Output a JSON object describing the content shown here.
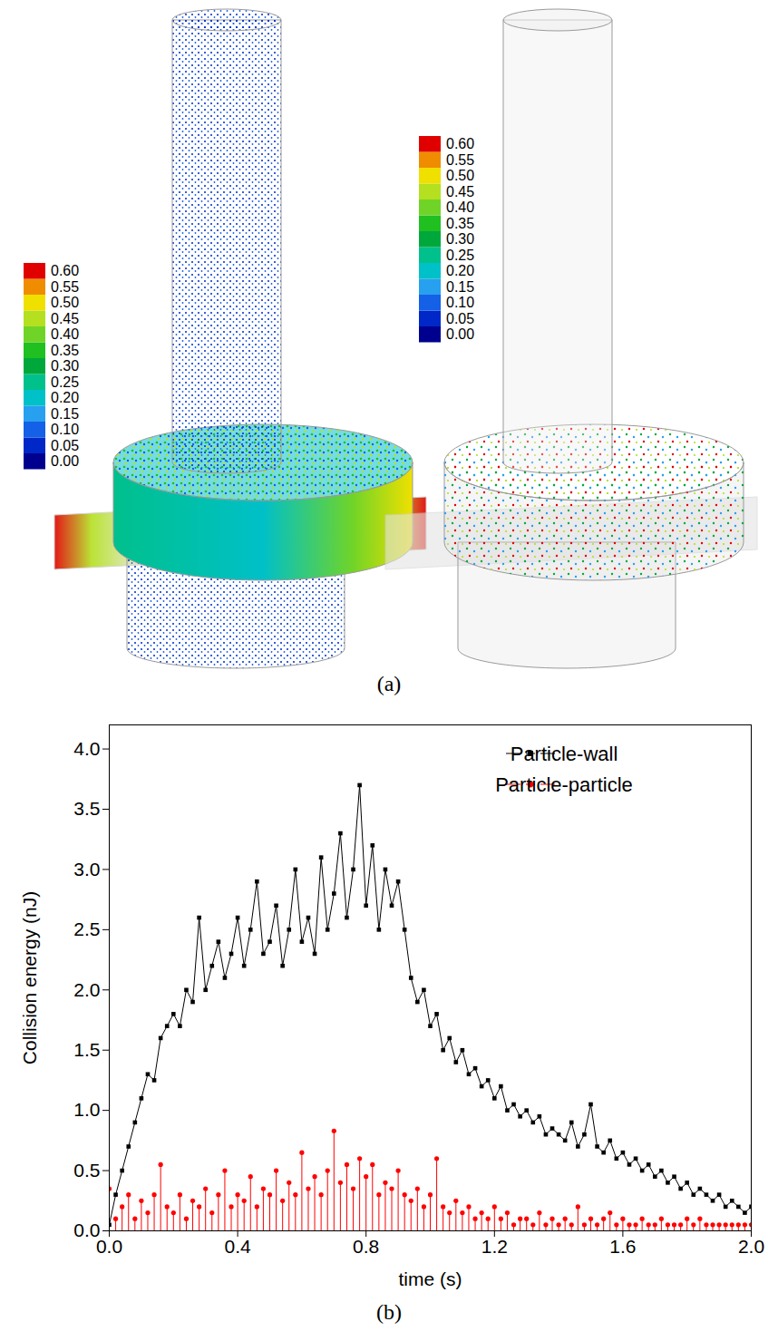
{
  "figure_a": {
    "caption": "(a)",
    "colorbars": [
      {
        "ticks": [
          {
            "value": 0,
            "label": "0.00"
          },
          {
            "value": 0.05,
            "label": "0.05"
          },
          {
            "value": 0.1,
            "label": "0.10"
          },
          {
            "value": 0.15,
            "label": "0.15"
          },
          {
            "value": 0.2,
            "label": "0.20"
          },
          {
            "value": 0.25,
            "label": "0.25"
          },
          {
            "value": 0.3,
            "label": "0.30"
          },
          {
            "value": 0.35,
            "label": "0.35"
          },
          {
            "value": 0.4,
            "label": "0.40"
          },
          {
            "value": 0.45,
            "label": "0.45"
          },
          {
            "value": 0.5,
            "label": "0.50"
          },
          {
            "value": 0.55,
            "label": "0.55"
          },
          {
            "value": 0.6,
            "label": "0.60"
          }
        ],
        "colors": [
          "#00008f",
          "#0028c8",
          "#1460e6",
          "#28a0f0",
          "#00c0c8",
          "#00c08c",
          "#00a83c",
          "#20c020",
          "#70d428",
          "#b4e020",
          "#f0e000",
          "#f08c00",
          "#e00000"
        ]
      },
      {
        "ticks": [
          {
            "value": 0,
            "label": "0.00"
          },
          {
            "value": 0.05,
            "label": "0.05"
          },
          {
            "value": 0.1,
            "label": "0.10"
          },
          {
            "value": 0.15,
            "label": "0.15"
          },
          {
            "value": 0.2,
            "label": "0.20"
          },
          {
            "value": 0.25,
            "label": "0.25"
          },
          {
            "value": 0.3,
            "label": "0.30"
          },
          {
            "value": 0.35,
            "label": "0.35"
          },
          {
            "value": 0.4,
            "label": "0.40"
          },
          {
            "value": 0.45,
            "label": "0.45"
          },
          {
            "value": 0.5,
            "label": "0.50"
          },
          {
            "value": 0.55,
            "label": "0.55"
          },
          {
            "value": 0.6,
            "label": "0.60"
          }
        ],
        "colors": [
          "#00008f",
          "#0028c8",
          "#1460e6",
          "#28a0f0",
          "#00c0c8",
          "#00c08c",
          "#00a83c",
          "#20c020",
          "#70d428",
          "#b4e020",
          "#f0e000",
          "#f08c00",
          "#e00000"
        ]
      }
    ]
  },
  "chart_data": {
    "type": "line",
    "caption": "(b)",
    "x_label": "time (s)",
    "y_label": "Collision energy (nJ)",
    "x": [
      0,
      0.02,
      0.04,
      0.06,
      0.08,
      0.1,
      0.12,
      0.14,
      0.16,
      0.18,
      0.2,
      0.22,
      0.24,
      0.26,
      0.28,
      0.3,
      0.32,
      0.34,
      0.36,
      0.38,
      0.4,
      0.42,
      0.44,
      0.46,
      0.48,
      0.5,
      0.52,
      0.54,
      0.56,
      0.58,
      0.6,
      0.62,
      0.64,
      0.66,
      0.68,
      0.7,
      0.72,
      0.74,
      0.76,
      0.78,
      0.8,
      0.82,
      0.84,
      0.86,
      0.88,
      0.9,
      0.92,
      0.94,
      0.96,
      0.98,
      1,
      1.02,
      1.04,
      1.06,
      1.08,
      1.1,
      1.12,
      1.14,
      1.16,
      1.18,
      1.2,
      1.22,
      1.24,
      1.26,
      1.28,
      1.3,
      1.32,
      1.34,
      1.36,
      1.38,
      1.4,
      1.42,
      1.44,
      1.46,
      1.48,
      1.5,
      1.52,
      1.54,
      1.56,
      1.58,
      1.6,
      1.62,
      1.64,
      1.66,
      1.68,
      1.7,
      1.72,
      1.74,
      1.76,
      1.78,
      1.8,
      1.82,
      1.84,
      1.86,
      1.88,
      1.9,
      1.92,
      1.94,
      1.96,
      1.98,
      2
    ],
    "series": [
      {
        "name": "Particle-wall",
        "color": "#000000",
        "type": "line",
        "marker": "square",
        "line_style": "solid",
        "values": [
          0.05,
          0.3,
          0.5,
          0.7,
          0.9,
          1.1,
          1.3,
          1.25,
          1.6,
          1.7,
          1.8,
          1.7,
          2.0,
          1.9,
          2.6,
          2.0,
          2.2,
          2.4,
          2.1,
          2.3,
          2.6,
          2.2,
          2.5,
          2.9,
          2.3,
          2.4,
          2.7,
          2.2,
          2.5,
          3.0,
          2.4,
          2.6,
          2.3,
          3.1,
          2.5,
          2.8,
          3.3,
          2.6,
          3.0,
          3.7,
          2.7,
          3.2,
          2.5,
          3.0,
          2.7,
          2.9,
          2.5,
          2.1,
          1.9,
          2.0,
          1.7,
          1.8,
          1.5,
          1.6,
          1.4,
          1.5,
          1.3,
          1.35,
          1.2,
          1.25,
          1.1,
          1.2,
          1.0,
          1.05,
          0.95,
          1.0,
          0.9,
          0.95,
          0.8,
          0.85,
          0.8,
          0.75,
          0.9,
          0.7,
          0.8,
          1.05,
          0.7,
          0.65,
          0.75,
          0.6,
          0.65,
          0.55,
          0.6,
          0.5,
          0.55,
          0.45,
          0.5,
          0.4,
          0.45,
          0.35,
          0.4,
          0.3,
          0.35,
          0.3,
          0.25,
          0.3,
          0.2,
          0.25,
          0.2,
          0.15,
          0.2
        ]
      },
      {
        "name": "Particle-particle",
        "color": "#ff0000",
        "type": "stem",
        "marker": "circle",
        "line_style": "solid",
        "values": [
          0.35,
          0.1,
          0.2,
          0.3,
          0.1,
          0.25,
          0.15,
          0.3,
          0.55,
          0.2,
          0.15,
          0.3,
          0.1,
          0.25,
          0.2,
          0.35,
          0.15,
          0.3,
          0.5,
          0.2,
          0.3,
          0.25,
          0.45,
          0.2,
          0.35,
          0.3,
          0.5,
          0.25,
          0.4,
          0.3,
          0.65,
          0.35,
          0.45,
          0.3,
          0.5,
          0.83,
          0.4,
          0.55,
          0.35,
          0.6,
          0.45,
          0.55,
          0.3,
          0.4,
          0.35,
          0.5,
          0.3,
          0.25,
          0.35,
          0.2,
          0.3,
          0.6,
          0.2,
          0.15,
          0.25,
          0.15,
          0.2,
          0.1,
          0.15,
          0.1,
          0.2,
          0.1,
          0.15,
          0.05,
          0.1,
          0.1,
          0.05,
          0.15,
          0.05,
          0.1,
          0.05,
          0.1,
          0.05,
          0.2,
          0.05,
          0.1,
          0.05,
          0.1,
          0.15,
          0.05,
          0.1,
          0.05,
          0.05,
          0.1,
          0.05,
          0.05,
          0.1,
          0.05,
          0.05,
          0.05,
          0.1,
          0.05,
          0.1,
          0.05,
          0.05,
          0.05,
          0.05,
          0.05,
          0.05,
          0.05,
          0.05
        ]
      }
    ],
    "xlim": [
      0,
      2
    ],
    "xticks": [
      {
        "value": 0,
        "label": "0.0"
      },
      {
        "value": 0.4,
        "label": "0.4"
      },
      {
        "value": 0.8,
        "label": "0.8"
      },
      {
        "value": 1.2,
        "label": "1.2"
      },
      {
        "value": 1.6,
        "label": "1.6"
      },
      {
        "value": 2,
        "label": "2.0"
      }
    ],
    "ylim": [
      0,
      4.2
    ],
    "yticks": [
      {
        "value": 0,
        "label": "0.0"
      },
      {
        "value": 0.5,
        "label": "0.5"
      },
      {
        "value": 1,
        "label": "1.0"
      },
      {
        "value": 1.5,
        "label": "1.5"
      },
      {
        "value": 2,
        "label": "2.0"
      },
      {
        "value": 2.5,
        "label": "2.5"
      },
      {
        "value": 3,
        "label": "3.0"
      },
      {
        "value": 3.5,
        "label": "3.5"
      },
      {
        "value": 4,
        "label": "4.0"
      }
    ],
    "grid": false,
    "legend": "top-right"
  }
}
